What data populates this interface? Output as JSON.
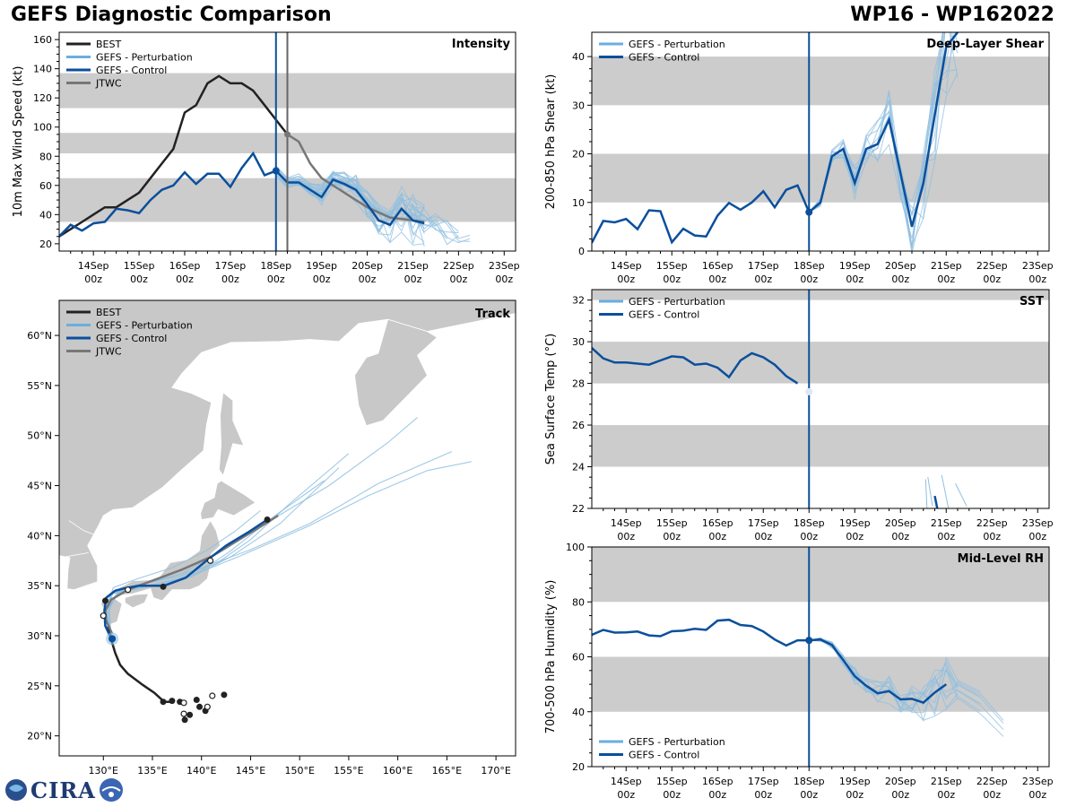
{
  "header": {
    "title": "GEFS Diagnostic Comparison",
    "storm": "WP16 - WP162022"
  },
  "logo": {
    "text": "CIRA"
  },
  "colors": {
    "best": "#222222",
    "pert": "#8fbfe0",
    "pert_legend": "#6aaee0",
    "control": "#0b4f9c",
    "jtwc": "#777777",
    "band": "#cccccc",
    "land": "#c8c8c8",
    "init_line": "#0b4f9c",
    "jtwc_line": "#666666"
  },
  "time_axis": {
    "ticks": [
      {
        "t": 1,
        "label": "14Sep",
        "sub": "00z"
      },
      {
        "t": 2,
        "label": "15Sep",
        "sub": "00z"
      },
      {
        "t": 3,
        "label": "16Sep",
        "sub": "00z"
      },
      {
        "t": 4,
        "label": "17Sep",
        "sub": "00z"
      },
      {
        "t": 5,
        "label": "18Sep",
        "sub": "00z"
      },
      {
        "t": 6,
        "label": "19Sep",
        "sub": "00z"
      },
      {
        "t": 7,
        "label": "20Sep",
        "sub": "00z"
      },
      {
        "t": 8,
        "label": "21Sep",
        "sub": "00z"
      },
      {
        "t": 9,
        "label": "22Sep",
        "sub": "00z"
      },
      {
        "t": 10,
        "label": "23Sep",
        "sub": "00z"
      }
    ],
    "xlim": [
      0.25,
      10.25
    ],
    "init_time": 5.0,
    "jtwc_time": 5.25
  },
  "chart_data": [
    {
      "id": "intensity",
      "type": "line",
      "title": "Intensity",
      "ylabel": "10m Max Wind Speed (kt)",
      "ylim": [
        15,
        165
      ],
      "yticks": [
        20,
        40,
        60,
        80,
        100,
        120,
        140,
        160
      ],
      "bands": [
        [
          35,
          65
        ],
        [
          82,
          96
        ],
        [
          113,
          137
        ]
      ],
      "legend": [
        "BEST",
        "GEFS - Perturbation",
        "GEFS - Control",
        "JTWC"
      ],
      "best": {
        "x": [
          0.25,
          0.5,
          0.75,
          1.0,
          1.25,
          1.5,
          1.75,
          2.0,
          2.25,
          2.5,
          2.75,
          3.0,
          3.25,
          3.5,
          3.75,
          4.0,
          4.25,
          4.5,
          4.75,
          5.0,
          5.25
        ],
        "y": [
          25,
          30,
          35,
          40,
          45,
          45,
          50,
          55,
          65,
          75,
          85,
          110,
          115,
          130,
          135,
          130,
          130,
          125,
          115,
          105,
          95
        ]
      },
      "control": {
        "x": [
          0.25,
          0.5,
          0.75,
          1.0,
          1.25,
          1.5,
          1.75,
          2.0,
          2.25,
          2.5,
          2.75,
          3.0,
          3.25,
          3.5,
          3.75,
          4.0,
          4.25,
          4.5,
          4.75,
          5.0,
          5.25,
          5.5,
          5.75,
          6.0,
          6.25,
          6.5,
          6.75,
          7.0,
          7.25,
          7.5,
          7.75,
          8.0,
          8.25
        ],
        "y": [
          25,
          33,
          29,
          34,
          35,
          44,
          43,
          41,
          50,
          57,
          60,
          69,
          61,
          68,
          68,
          59,
          72,
          82,
          67,
          70,
          62,
          62,
          57,
          52,
          64,
          61,
          57,
          47,
          36,
          33,
          44,
          36,
          34
        ]
      },
      "jtwc": {
        "x": [
          5.25,
          5.5,
          5.75,
          6.0,
          6.5,
          7.0,
          7.5,
          8.0,
          8.25
        ],
        "y": [
          95,
          90,
          75,
          65,
          55,
          45,
          38,
          36,
          35
        ]
      },
      "jtwc_marker": 95,
      "init_marker": 70,
      "perturbation_spread": [
        [
          5.0,
          5.25,
          5.5,
          5.75,
          6.0,
          6.25,
          6.5,
          6.75,
          7.0,
          7.25,
          7.5,
          7.75,
          8.0,
          8.25,
          8.5,
          8.75,
          9.0,
          9.25
        ],
        [
          70,
          62,
          64,
          58,
          56,
          67,
          63,
          58,
          52,
          42,
          38,
          44,
          40,
          36,
          34,
          28,
          24,
          20
        ]
      ]
    },
    {
      "id": "shear",
      "type": "line",
      "title": "Deep-Layer Shear",
      "ylabel": "200-850 hPa Shear (kt)",
      "ylim": [
        0,
        45
      ],
      "yticks": [
        0,
        10,
        20,
        30,
        40
      ],
      "bands": [
        [
          10,
          20
        ],
        [
          30,
          40
        ]
      ],
      "legend": [
        "GEFS - Perturbation",
        "GEFS - Control"
      ],
      "control": {
        "x": [
          0.25,
          0.5,
          0.75,
          1.0,
          1.25,
          1.5,
          1.75,
          2.0,
          2.25,
          2.5,
          2.75,
          3.0,
          3.25,
          3.5,
          3.75,
          4.0,
          4.25,
          4.5,
          4.75,
          5.0,
          5.25,
          5.5,
          5.75,
          6.0,
          6.25,
          6.5,
          6.75,
          7.0,
          7.25,
          7.5,
          7.75,
          8.0,
          8.25
        ],
        "y": [
          1.7,
          6.2,
          5.9,
          6.6,
          4.5,
          8.4,
          8.2,
          1.8,
          4.6,
          3.2,
          3.0,
          7.3,
          9.9,
          8.5,
          10.0,
          12.3,
          9.0,
          12.6,
          13.5,
          8.0,
          10.0,
          19.5,
          21.0,
          14.0,
          21.0,
          22.0,
          27.0,
          16.0,
          5.0,
          14.0,
          28.0,
          42.0,
          45.0
        ]
      },
      "init_marker": 8.0
    },
    {
      "id": "sst",
      "type": "line",
      "title": "SST",
      "ylabel": "Sea Surface Temp (°C)",
      "ylim": [
        22,
        32.5
      ],
      "yticks": [
        22,
        24,
        26,
        28,
        30,
        32
      ],
      "bands": [
        [
          24,
          26
        ],
        [
          28,
          30
        ],
        [
          32,
          32.5
        ]
      ],
      "legend": [
        "GEFS - Perturbation",
        "GEFS - Control"
      ],
      "control": {
        "x": [
          0.25,
          0.5,
          0.75,
          1.0,
          1.25,
          1.5,
          1.75,
          2.0,
          2.25,
          2.5,
          2.75,
          3.0,
          3.25,
          3.5,
          3.75,
          4.0,
          4.25,
          4.5,
          4.75
        ],
        "y": [
          29.7,
          29.2,
          29.0,
          29.0,
          28.95,
          28.9,
          29.1,
          29.3,
          29.25,
          28.9,
          28.95,
          28.75,
          28.3,
          29.1,
          29.45,
          29.25,
          28.9,
          28.35,
          28.0
        ]
      },
      "late_segment": {
        "x": [
          7.75,
          7.85
        ],
        "y": [
          22.6,
          21.5
        ]
      },
      "init_marker": 27.6
    },
    {
      "id": "rh",
      "type": "line",
      "title": "Mid-Level RH",
      "ylabel": "700-500 hPa Humidity (%)",
      "ylim": [
        20,
        100
      ],
      "yticks": [
        20,
        40,
        60,
        80,
        100
      ],
      "bands": [
        [
          40,
          60
        ],
        [
          80,
          100
        ]
      ],
      "legend": [
        "GEFS - Perturbation",
        "GEFS - Control"
      ],
      "control": {
        "x": [
          0.25,
          0.5,
          0.75,
          1.0,
          1.25,
          1.5,
          1.75,
          2.0,
          2.25,
          2.5,
          2.75,
          3.0,
          3.25,
          3.5,
          3.75,
          4.0,
          4.25,
          4.5,
          4.75,
          5.0,
          5.25,
          5.5,
          5.75,
          6.0,
          6.25,
          6.5,
          6.75,
          7.0,
          7.25,
          7.5,
          7.75,
          8.0
        ],
        "y": [
          68,
          69.8,
          68.8,
          68.9,
          69.2,
          67.8,
          67.5,
          69.3,
          69.5,
          70.2,
          69.8,
          73.2,
          73.5,
          71.6,
          71.2,
          69.2,
          66.3,
          64.1,
          66.0,
          66.0,
          66.3,
          64.3,
          58.8,
          52.9,
          49.5,
          46.7,
          47.5,
          44.5,
          44.7,
          43.3,
          47.0,
          50.0
        ]
      },
      "init_marker": 66.0
    },
    {
      "id": "track",
      "type": "line",
      "title": "Track",
      "lon_range": [
        125.5,
        172.0
      ],
      "lat_range": [
        18,
        63.5
      ],
      "lon_ticks": [
        {
          "v": 130,
          "label": "130°E"
        },
        {
          "v": 135,
          "label": "135°E"
        },
        {
          "v": 140,
          "label": "140°E"
        },
        {
          "v": 145,
          "label": "145°E"
        },
        {
          "v": 150,
          "label": "150°E"
        },
        {
          "v": 155,
          "label": "155°E"
        },
        {
          "v": 160,
          "label": "160°E"
        },
        {
          "v": 165,
          "label": "165°E"
        },
        {
          "v": 170,
          "label": "170°E"
        }
      ],
      "lat_ticks": [
        {
          "v": 20,
          "label": "20°N"
        },
        {
          "v": 25,
          "label": "25°N"
        },
        {
          "v": 30,
          "label": "30°N"
        },
        {
          "v": 35,
          "label": "35°N"
        },
        {
          "v": 40,
          "label": "40°N"
        },
        {
          "v": 45,
          "label": "45°N"
        },
        {
          "v": 50,
          "label": "50°N"
        },
        {
          "v": 55,
          "label": "55°N"
        },
        {
          "v": 60,
          "label": "60°N"
        }
      ],
      "legend": [
        "BEST",
        "GEFS - Perturbation",
        "GEFS - Control",
        "JTWC"
      ],
      "best": {
        "lon": [
          137.0,
          136.2,
          135.2,
          134.0,
          132.5,
          131.7,
          131.2,
          130.9,
          130.8,
          130.6,
          130.5
        ],
        "lat": [
          23.4,
          23.4,
          24.3,
          25.1,
          26.2,
          27.1,
          28.3,
          29.3,
          29.8,
          30.4,
          31.0
        ]
      },
      "best_points": {
        "lon": [
          142.3,
          140.4,
          139.8,
          139.5,
          138.8,
          138.3,
          137.8,
          137.0,
          136.1
        ],
        "lat": [
          24.1,
          22.5,
          22.9,
          23.6,
          22.1,
          21.6,
          23.4,
          23.5,
          23.4
        ]
      },
      "best_open_points": {
        "lon": [
          141.1,
          140.6,
          138.2,
          138.2
        ],
        "lat": [
          24.0,
          22.9,
          23.3,
          22.2
        ]
      },
      "control": {
        "lon": [
          130.8,
          130.2,
          130.1,
          130.3,
          131.2,
          132.0,
          133.6,
          136.2,
          138.4,
          140.5,
          142.5,
          144.7,
          146.7
        ],
        "lat": [
          29.7,
          31.0,
          32.5,
          33.8,
          34.5,
          34.7,
          35.0,
          35.0,
          35.8,
          37.5,
          39.0,
          40.3,
          41.6
        ]
      },
      "jtwc": {
        "lon": [
          130.9,
          130.3,
          130.2,
          130.8,
          132.5,
          135.0,
          138.0,
          141.0,
          144.0,
          146.5,
          147.8
        ],
        "lat": [
          30.2,
          31.5,
          32.5,
          33.6,
          34.6,
          35.5,
          36.6,
          37.9,
          39.7,
          41.2,
          42.0
        ]
      },
      "jtwc_open_points": {
        "lon": [
          132.5,
          140.9,
          130.0
        ],
        "lat": [
          34.6,
          37.5,
          32.0
        ]
      },
      "best_filled_points": {
        "lon": [
          130.2,
          136.1,
          146.7
        ],
        "lat": [
          33.5,
          34.9,
          41.6
        ]
      },
      "control_marker": {
        "lon": 130.9,
        "lat": 29.7
      },
      "perturbation_fan": [
        {
          "lon": [
            130.8,
            130.3,
            131.2,
            134.0,
            138.0,
            142.0,
            147.0,
            153.0,
            159.0,
            162.0
          ],
          "lat": [
            29.7,
            32.0,
            34.0,
            35.2,
            36.2,
            38.4,
            41.5,
            45.0,
            49.3,
            51.8
          ]
        },
        {
          "lon": [
            130.8,
            130.2,
            131.0,
            134.5,
            139.0,
            144.0,
            151.0,
            157.0,
            163.0,
            167.5
          ],
          "lat": [
            29.7,
            32.4,
            34.3,
            35.0,
            36.0,
            38.0,
            41.0,
            44.0,
            46.5,
            47.4
          ]
        },
        {
          "lon": [
            130.8,
            130.4,
            131.5,
            135.0,
            139.5,
            145.0,
            151.0,
            158.0,
            165.5
          ],
          "lat": [
            29.7,
            32.2,
            34.4,
            35.4,
            36.6,
            38.6,
            41.2,
            45.2,
            48.4
          ]
        },
        {
          "lon": [
            130.8,
            130.5,
            131.8,
            135.5,
            139.0,
            143.0,
            148.0,
            154.0
          ],
          "lat": [
            29.7,
            32.8,
            34.6,
            35.1,
            35.9,
            37.9,
            41.2,
            46.8
          ]
        },
        {
          "lon": [
            130.8,
            130.3,
            131.0,
            133.5,
            137.0,
            140.5,
            143.5,
            146.0
          ],
          "lat": [
            29.7,
            32.6,
            34.8,
            35.7,
            36.8,
            38.5,
            40.5,
            42.5
          ]
        },
        {
          "lon": [
            130.8,
            130.1,
            130.8,
            133.0,
            136.5,
            140.0,
            143.0,
            147.5,
            152.5
          ],
          "lat": [
            29.7,
            32.3,
            34.2,
            34.6,
            35.3,
            36.5,
            38.5,
            42.0,
            45.5
          ]
        },
        {
          "lon": [
            130.8,
            130.6,
            132.0,
            135.0,
            138.0,
            141.5,
            145.0,
            149.0,
            155.0
          ],
          "lat": [
            29.7,
            33.0,
            34.8,
            35.4,
            36.0,
            37.2,
            39.6,
            43.2,
            48.2
          ]
        }
      ]
    }
  ]
}
